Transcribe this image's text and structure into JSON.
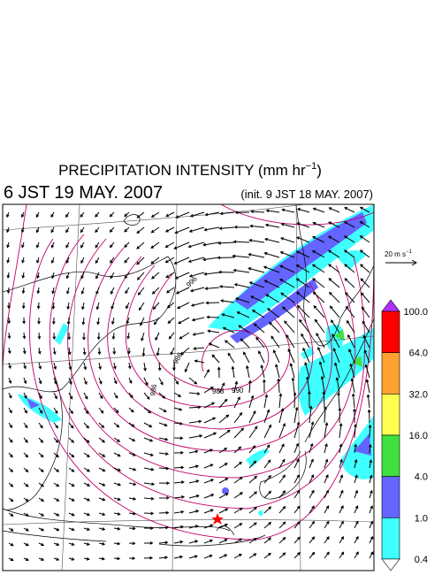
{
  "title": {
    "text": "PRECIPITATION INTENSITY (mm hr",
    "superscript": "−1",
    "close": ")"
  },
  "valid_time": "6 JST 19 MAY. 2007",
  "init_time": "(init. 9 JST 18 MAY. 2007)",
  "vector_reference": {
    "label": "20 m s",
    "superscript": "−1"
  },
  "contour_labels": [
    "996",
    "986",
    "988",
    "990",
    "986"
  ],
  "colorbar": {
    "labels": [
      "100.0",
      "64.0",
      "32.0",
      "16.0",
      "4.0",
      "1.0",
      "0.4"
    ],
    "colors": [
      "#b030ff",
      "#ff0000",
      "#ffa030",
      "#ffff50",
      "#40e040",
      "#6464ff",
      "#40ffff",
      "#ffffff"
    ]
  }
}
